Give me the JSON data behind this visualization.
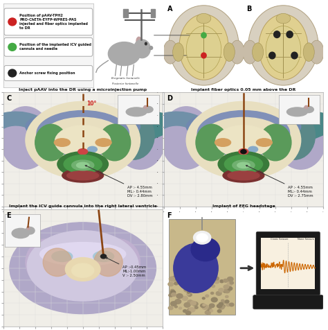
{
  "bg_color": "#ffffff",
  "legend_items": [
    {
      "color": "#cc2222",
      "text": "Position of pAAV-TPH2\nPRO-ChETA-EYFP-WPRES-PAS\ninjected and fiber optics implanted\nto DR"
    },
    {
      "color": "#44aa44",
      "text": "Position of the implanted ICV guided\ncannula and needle"
    },
    {
      "color": "#222222",
      "text": "Anchor screw fixing position"
    }
  ],
  "panel_C_title": "Inject pAAV into the DR using a microinjection pump",
  "panel_D_title": "Implant fiber optics 0.05 mm above the DR",
  "panel_E_title": "Implant the ICV guide cannula into the right lateral ventricle",
  "panel_F_title": "Implant of EEG headstage",
  "panel_C_coords": "AP :- 4.55mm\nML:- 0.44mm\nDV :- 2.80mm",
  "panel_D_coords": "AP :- 4.55mm\nML:- 0.44mm\nDV :- 2.75mm",
  "panel_E_coords": "AP :-0.45mm\nML:-1.00mm\nV :- 2.50mm",
  "skull_bone_color": "#d4c08a",
  "skull_outline_color": "#b8a06a",
  "brain_outer_purple": "#b0a8c8",
  "brain_mid_purple": "#9898c0",
  "brain_blue_band": "#7088b0",
  "brain_teal_dark": "#3a7070",
  "brain_teal_light": "#5a9090",
  "brain_green_dark": "#4a7a4a",
  "brain_green_mid": "#5a9a5a",
  "brain_green_light": "#70b070",
  "brain_inner_cream": "#e8dfc0",
  "brain_orange": "#d4a060",
  "brain_red_center": "#cc4444",
  "brain_needle": "#8B4513",
  "brain_blue_small": "#8ab0c8"
}
